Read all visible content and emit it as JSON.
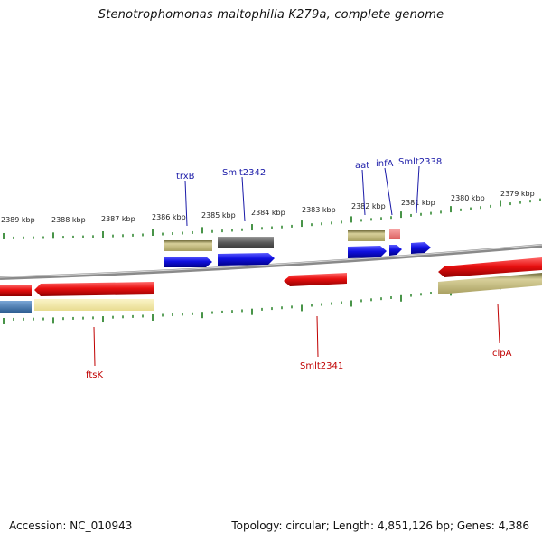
{
  "title": "Stenotrophomonas maltophilia K279a, complete genome",
  "accession": "Accession: NC_010943",
  "summary": "Topology: circular; Length: 4,851,126 bp; Genes: 4,386",
  "ticks": [
    "2389 kbp",
    "2388 kbp",
    "2387 kbp",
    "2386 kbp",
    "2385 kbp",
    "2384 kbp",
    "2383 kbp",
    "2382 kbp",
    "2381 kbp",
    "2380 kbp",
    "2379 kbp"
  ],
  "labels": {
    "trxB": "trxB",
    "smlt2342": "Smlt2342",
    "aat": "aat",
    "infA": "infA",
    "smlt2338": "Smlt2338",
    "ftsK": "ftsK",
    "smlt2341": "Smlt2341",
    "clpA": "clpA"
  },
  "colors": {
    "cds_forward": "#1010e0",
    "cds_reverse": "#e01010",
    "gene_khaki": "#b5ad72",
    "gene_pale_yellow": "#f2e8a4",
    "gene_gray": "#6a6a6a",
    "gene_steel": "#4a7fb5",
    "gene_pink": "#ec8080",
    "backbone": "#8a8a8a",
    "ticks": "#1a7a1a"
  }
}
